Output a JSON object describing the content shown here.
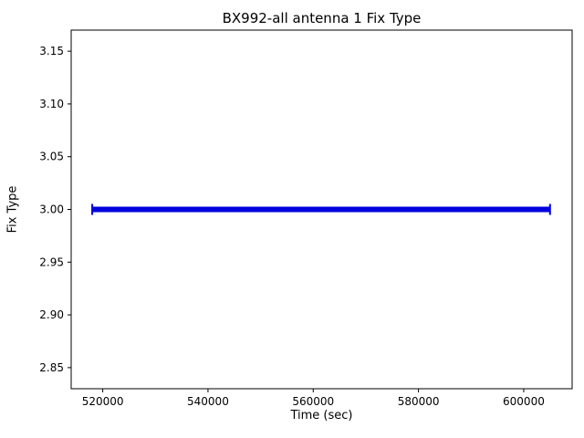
{
  "chart_data": {
    "type": "line",
    "title": "BX992-all antenna 1 Fix Type",
    "xlabel": "Time (sec)",
    "ylabel": "Fix Type",
    "xlim": [
      514000,
      609200
    ],
    "ylim": [
      2.83,
      3.17
    ],
    "xticks": [
      520000,
      540000,
      560000,
      580000,
      600000
    ],
    "yticks": [
      2.85,
      2.9,
      2.95,
      3.0,
      3.05,
      3.1,
      3.15
    ],
    "grid": false,
    "legend_position": "none",
    "series": [
      {
        "name": "antenna 1 fix type",
        "x": [
          518000,
          605000
        ],
        "y": [
          3.0,
          3.0
        ],
        "color": "#0000dd",
        "linewidth": 6,
        "marker": "+"
      }
    ]
  }
}
